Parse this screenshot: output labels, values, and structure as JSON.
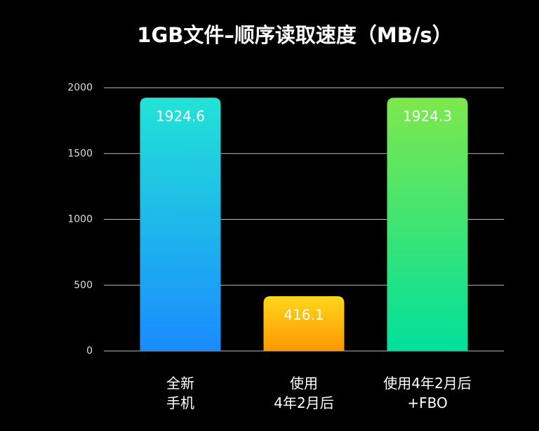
{
  "chart_data": {
    "type": "bar",
    "title": "1GB文件–顺序读取速度（MB/s）",
    "categories": [
      "全新\n手机",
      "使用\n4年2月后",
      "使用4年2月后\n+FBO"
    ],
    "values": [
      1924.6,
      416.1,
      1924.3
    ],
    "colors": [
      [
        "#22e3d6",
        "#1a8bff"
      ],
      [
        "#ffd61c",
        "#ff9800"
      ],
      [
        "#7ee84c",
        "#00e09c"
      ]
    ],
    "ylim": [
      0,
      2000
    ],
    "yticks": [
      0,
      500,
      1000,
      1500,
      2000
    ],
    "grid": true
  }
}
